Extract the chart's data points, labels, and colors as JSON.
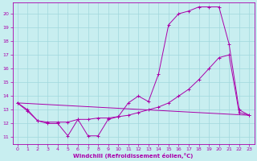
{
  "xlabel": "Windchill (Refroidissement éolien,°C)",
  "bg_color": "#c8eef0",
  "line_color": "#aa00aa",
  "grid_color": "#a0d8dc",
  "xlim": [
    -0.5,
    23.5
  ],
  "ylim": [
    10.5,
    20.8
  ],
  "yticks": [
    11,
    12,
    13,
    14,
    15,
    16,
    17,
    18,
    19,
    20
  ],
  "xticks": [
    0,
    1,
    2,
    3,
    4,
    5,
    6,
    7,
    8,
    9,
    10,
    11,
    12,
    13,
    14,
    15,
    16,
    17,
    18,
    19,
    20,
    21,
    22,
    23
  ],
  "series0_x": [
    0,
    1,
    2,
    3,
    4,
    5,
    6,
    7,
    8,
    9,
    10,
    11,
    12,
    13,
    14,
    15,
    16,
    17,
    18,
    19,
    20,
    21,
    22,
    23
  ],
  "series0_y": [
    13.5,
    13.0,
    12.2,
    12.0,
    12.0,
    11.1,
    12.3,
    11.1,
    11.1,
    12.3,
    12.5,
    13.5,
    14.0,
    13.6,
    15.6,
    19.2,
    20.0,
    20.2,
    20.5,
    20.5,
    20.5,
    17.8,
    13.0,
    12.6
  ],
  "series1_x": [
    0,
    1,
    2,
    3,
    4,
    5,
    6,
    7,
    8,
    9,
    10,
    11,
    12,
    13,
    14,
    15,
    16,
    17,
    18,
    19,
    20,
    21,
    22,
    23
  ],
  "series1_y": [
    13.5,
    12.9,
    12.2,
    12.1,
    12.1,
    12.1,
    12.3,
    12.3,
    12.4,
    12.4,
    12.5,
    12.6,
    12.8,
    13.0,
    13.2,
    13.5,
    14.0,
    14.5,
    15.2,
    16.0,
    16.8,
    17.0,
    12.8,
    12.6
  ],
  "series2_x": [
    0,
    23
  ],
  "series2_y": [
    13.5,
    12.6
  ]
}
